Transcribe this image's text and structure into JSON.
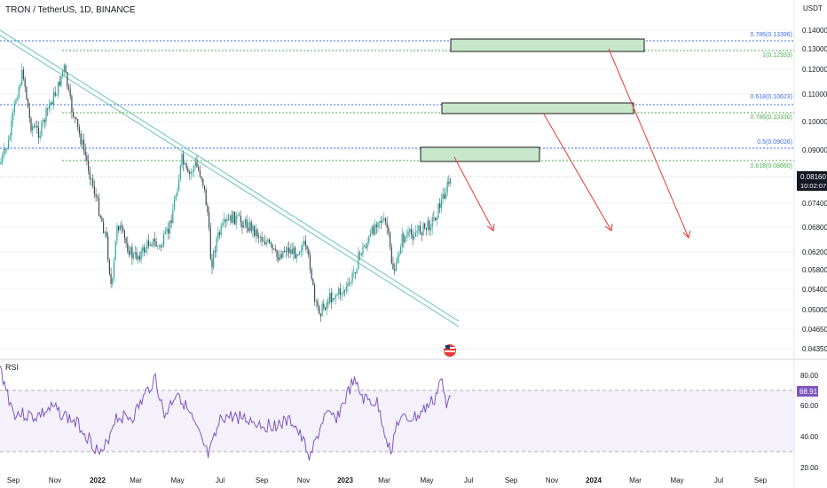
{
  "header": {
    "symbol": "TRON / TetherUS, 1D, BINANCE",
    "currency": "USDT",
    "rsi_label": "RSI"
  },
  "price_axis": {
    "ticks": [
      "0.14000",
      "0.13000",
      "0.12000",
      "0.11000",
      "0.10000",
      "0.09000",
      "0.07400",
      "0.06800",
      "0.06200",
      "0.05800",
      "0.05400",
      "0.05000",
      "0.04650",
      "0.04350"
    ],
    "last_price": "0.08160",
    "countdown": "10:02:07"
  },
  "rsi_axis": {
    "ticks": [
      "80.00",
      "60.00",
      "40.00",
      "20.00"
    ],
    "current": "68.91"
  },
  "time_axis": {
    "ticks": [
      "Sep",
      "Nov",
      "2022",
      "Mar",
      "May",
      "Jul",
      "Sep",
      "Nov",
      "2023",
      "Mar",
      "May",
      "Jul",
      "Sep",
      "Nov",
      "2024",
      "Mar",
      "May",
      "Jul",
      "Sep"
    ]
  },
  "fib_levels": [
    {
      "label": "0.786(0.13396)",
      "color": "#3b6ee8"
    },
    {
      "label": "1(0.12933)",
      "color": "#4caf50"
    },
    {
      "label": "0.618(0.10623)",
      "color": "#3b6ee8"
    },
    {
      "label": "0.786(0.10330)",
      "color": "#4caf50"
    },
    {
      "label": "0.5(0.09026)",
      "color": "#3b6ee8"
    },
    {
      "label": "0.618(0.08660)",
      "color": "#4caf50"
    }
  ],
  "colors": {
    "up": "#26a69a",
    "down": "#3d4a52",
    "rsi_line": "#7e57c2",
    "target_box": "#c8e6c9",
    "arrow": "#e53935",
    "trendline": "#80cbc4"
  },
  "icons": {
    "flag": "us-flag-icon"
  }
}
